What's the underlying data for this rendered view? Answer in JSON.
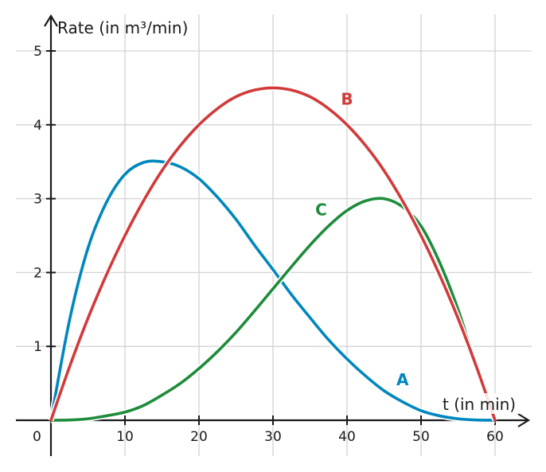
{
  "chart_data": {
    "type": "line",
    "xlabel": "t (in min)",
    "ylabel": "Rate (in m³/min)",
    "origin_label": "0",
    "xlim": [
      0,
      60
    ],
    "ylim": [
      0,
      5
    ],
    "x_ticks": [
      10,
      20,
      30,
      40,
      50,
      60
    ],
    "y_ticks": [
      1,
      2,
      3,
      4,
      5
    ],
    "grid": true,
    "series": [
      {
        "name": "A",
        "color": "#0087be",
        "x": [
          0,
          2.5,
          5,
          7.5,
          10,
          12.5,
          15,
          17.5,
          20,
          22.5,
          25,
          27.5,
          30,
          32.5,
          35,
          37.5,
          40,
          42.5,
          45,
          47.5,
          50,
          52.5,
          55,
          57.5,
          60
        ],
        "y": [
          0,
          1.35,
          2.33,
          2.95,
          3.33,
          3.49,
          3.5,
          3.43,
          3.27,
          3.02,
          2.72,
          2.37,
          2.04,
          1.7,
          1.39,
          1.09,
          0.83,
          0.6,
          0.4,
          0.25,
          0.13,
          0.06,
          0.02,
          0.003,
          0
        ]
      },
      {
        "name": "B",
        "color": "#d23a3a",
        "x": [
          0,
          2.5,
          5,
          7.5,
          10,
          12.5,
          15,
          17.5,
          20,
          22.5,
          25,
          27.5,
          30,
          32.5,
          35,
          37.5,
          40,
          42.5,
          45,
          47.5,
          50,
          52.5,
          55,
          57.5,
          60
        ],
        "y": [
          0,
          0.72,
          1.38,
          1.97,
          2.5,
          2.97,
          3.38,
          3.72,
          4.0,
          4.22,
          4.38,
          4.47,
          4.5,
          4.47,
          4.38,
          4.22,
          4.0,
          3.72,
          3.38,
          2.97,
          2.5,
          1.97,
          1.38,
          0.72,
          0
        ]
      },
      {
        "name": "C",
        "color": "#1e8c3a",
        "x": [
          0,
          2.5,
          5,
          7.5,
          10,
          12.5,
          15,
          17.5,
          20,
          22.5,
          25,
          27.5,
          30,
          32.5,
          35,
          37.5,
          40,
          42.5,
          45,
          47.5,
          50,
          52.5,
          55,
          57.5,
          60
        ],
        "y": [
          0,
          0.003,
          0.02,
          0.06,
          0.11,
          0.2,
          0.34,
          0.5,
          0.7,
          0.93,
          1.19,
          1.48,
          1.78,
          2.08,
          2.37,
          2.63,
          2.84,
          2.97,
          3.0,
          2.89,
          2.63,
          2.14,
          1.5,
          0.72,
          0
        ]
      }
    ]
  }
}
